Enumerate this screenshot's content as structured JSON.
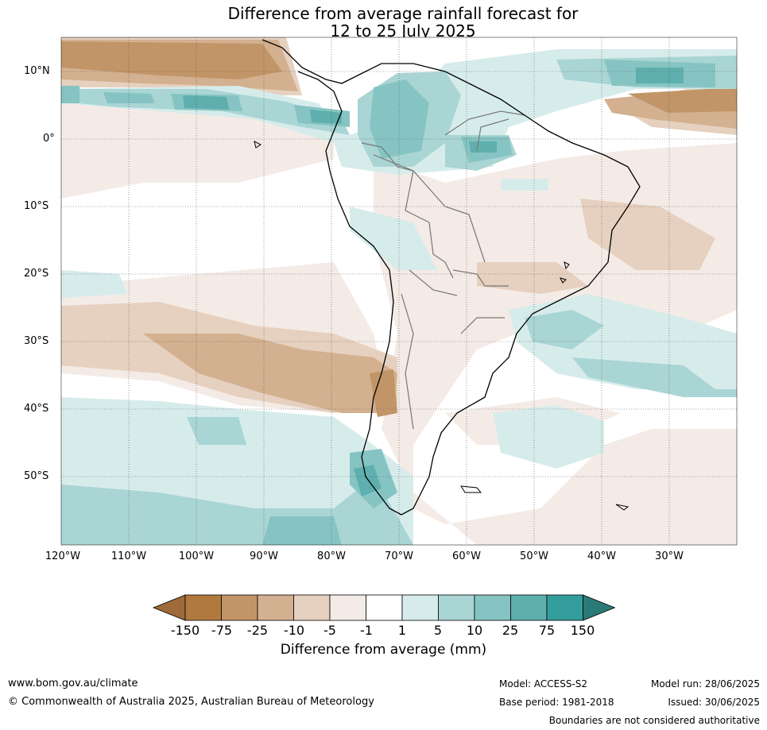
{
  "title_line1": "Difference from average rainfall forecast for",
  "title_line2": "12 to 25 July 2025",
  "lat_labels": [
    "10°N",
    "0°",
    "10°S",
    "20°S",
    "30°S",
    "40°S",
    "50°S"
  ],
  "lon_labels": [
    "120°W",
    "110°W",
    "100°W",
    "90°W",
    "80°W",
    "70°W",
    "60°W",
    "50°W",
    "40°W",
    "30°W"
  ],
  "colorbar": {
    "label": "Difference from average (mm)",
    "ticks": [
      "-150",
      "-75",
      "-25",
      "-10",
      "-5",
      "-1",
      "1",
      "5",
      "10",
      "25",
      "75",
      "150"
    ],
    "colors": [
      "#9e6a3a",
      "#b07a3e",
      "#c29568",
      "#d3b08f",
      "#e6d0bf",
      "#f4ebe6",
      "#ffffff",
      "#d6eceb",
      "#a9d5d4",
      "#86c4c3",
      "#5eafad",
      "#349e9c",
      "#2b7a78"
    ]
  },
  "footer": {
    "website": "www.bom.gov.au/climate",
    "copyright": "© Commonwealth of Australia 2025, Australian Bureau of Meteorology",
    "model": "Model: ACCESS-S2",
    "base_period": "Base period: 1981-2018",
    "model_run": "Model run: 28/06/2025",
    "issued": "Issued: 30/06/2025",
    "boundaries": "Boundaries are not considered authoritative"
  }
}
